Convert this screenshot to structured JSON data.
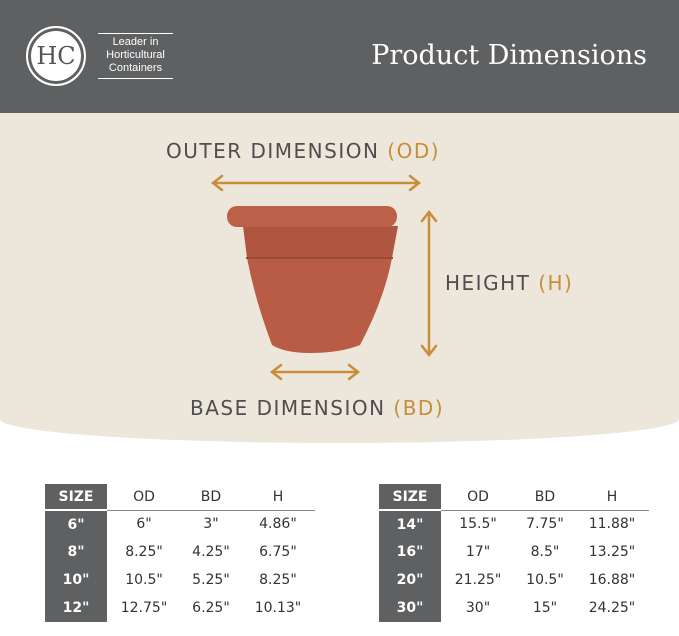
{
  "header": {
    "logo_text": "HC",
    "tagline": [
      "Leader in",
      "Horticultural",
      "Containers"
    ],
    "title": "Product Dimensions"
  },
  "diagram": {
    "od_label": "OUTER DIMENSION",
    "od_abbr": "(OD)",
    "h_label": "HEIGHT",
    "h_abbr": "(H)",
    "bd_label": "BASE DIMENSION",
    "bd_abbr": "(BD)"
  },
  "colors": {
    "header": "#5f6062",
    "accent": "#c98d3a",
    "pot": "#b55a45",
    "band": "#ede6da"
  },
  "tables": {
    "headers": [
      "SIZE",
      "OD",
      "BD",
      "H"
    ],
    "left": [
      [
        "6\"",
        "6\"",
        "3\"",
        "4.86\""
      ],
      [
        "8\"",
        "8.25\"",
        "4.25\"",
        "6.75\""
      ],
      [
        "10\"",
        "10.5\"",
        "5.25\"",
        "8.25\""
      ],
      [
        "12\"",
        "12.75\"",
        "6.25\"",
        "10.13\""
      ]
    ],
    "right": [
      [
        "14\"",
        "15.5\"",
        "7.75\"",
        "11.88\""
      ],
      [
        "16\"",
        "17\"",
        "8.5\"",
        "13.25\""
      ],
      [
        "20\"",
        "21.25\"",
        "10.5\"",
        "16.88\""
      ],
      [
        "30\"",
        "30\"",
        "15\"",
        "24.25\""
      ]
    ]
  }
}
